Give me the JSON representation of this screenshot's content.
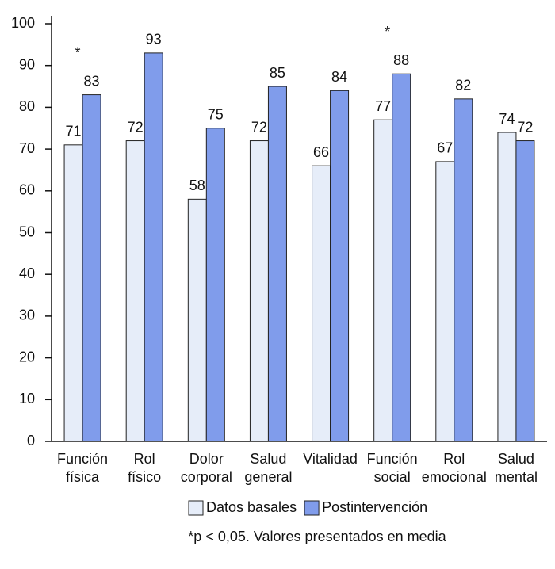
{
  "chart_data": {
    "type": "bar",
    "categories": [
      [
        "Función",
        "física"
      ],
      [
        "Rol",
        "físico"
      ],
      [
        "Dolor",
        "corporal"
      ],
      [
        "Salud",
        "general"
      ],
      [
        "Vitalidad"
      ],
      [
        "Función",
        "social"
      ],
      [
        "Rol",
        "emocional"
      ],
      [
        "Salud",
        "mental"
      ]
    ],
    "series": [
      {
        "name": "Datos basales",
        "color": "#e6edf9",
        "values": [
          71,
          72,
          58,
          72,
          66,
          77,
          67,
          74
        ]
      },
      {
        "name": "Postintervención",
        "color": "#809ceb",
        "values": [
          83,
          93,
          75,
          85,
          84,
          88,
          82,
          72
        ]
      }
    ],
    "ylim": [
      0,
      100
    ],
    "yticks": [
      0,
      10,
      20,
      30,
      40,
      50,
      60,
      70,
      80,
      90,
      100
    ],
    "annotations": [
      {
        "text": "*",
        "category": 0
      },
      {
        "text": "*",
        "category": 5
      }
    ],
    "footnote": "*p < 0,05. Valores presentados en media",
    "legend": "bottom"
  }
}
